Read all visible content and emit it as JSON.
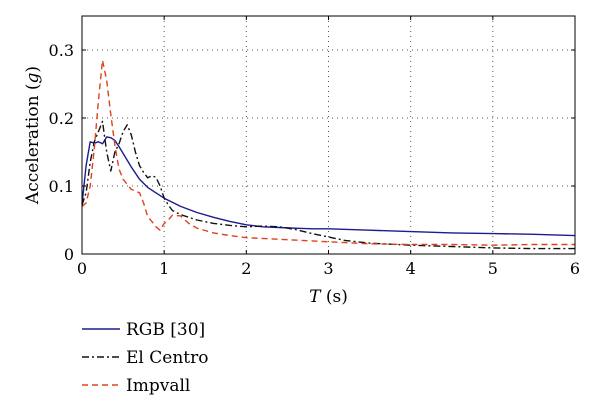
{
  "chart_data": {
    "type": "line",
    "title": "",
    "xlabel": "T (s)",
    "xlabel_italic": "T",
    "xlabel_rest": " (s)",
    "ylabel": "Acceleration (g)",
    "ylabel_prefix": "Acceleration (",
    "ylabel_italic": "g",
    "ylabel_suffix": ")",
    "xlim": [
      0,
      6
    ],
    "ylim": [
      0,
      0.35
    ],
    "xticks": [
      0,
      1,
      2,
      3,
      4,
      5,
      6
    ],
    "xtick_labels": [
      "0",
      "1",
      "2",
      "3",
      "4",
      "5",
      "6"
    ],
    "yticks": [
      0,
      0.1,
      0.2,
      0.3
    ],
    "ytick_labels": [
      "0",
      "0.1",
      "0.2",
      "0.3"
    ],
    "grid": true,
    "legend_position": "below",
    "series": [
      {
        "name": "RGB [30]",
        "color": "#1c1c8c",
        "dash": "solid",
        "points": [
          [
            0,
            0.073
          ],
          [
            0.05,
            0.13
          ],
          [
            0.1,
            0.165
          ],
          [
            0.15,
            0.163
          ],
          [
            0.2,
            0.165
          ],
          [
            0.25,
            0.162
          ],
          [
            0.3,
            0.172
          ],
          [
            0.35,
            0.171
          ],
          [
            0.4,
            0.167
          ],
          [
            0.45,
            0.158
          ],
          [
            0.5,
            0.148
          ],
          [
            0.6,
            0.128
          ],
          [
            0.7,
            0.11
          ],
          [
            0.8,
            0.098
          ],
          [
            0.9,
            0.09
          ],
          [
            1.0,
            0.082
          ],
          [
            1.2,
            0.07
          ],
          [
            1.4,
            0.061
          ],
          [
            1.6,
            0.054
          ],
          [
            1.8,
            0.048
          ],
          [
            2.0,
            0.043
          ],
          [
            2.2,
            0.04
          ],
          [
            2.4,
            0.039
          ],
          [
            2.6,
            0.038
          ],
          [
            2.8,
            0.037
          ],
          [
            3.0,
            0.037
          ],
          [
            3.5,
            0.035
          ],
          [
            4.0,
            0.033
          ],
          [
            4.5,
            0.031
          ],
          [
            5.0,
            0.03
          ],
          [
            5.5,
            0.029
          ],
          [
            6.0,
            0.027
          ]
        ]
      },
      {
        "name": "El Centro",
        "color": "#111111",
        "dash": "dashdot",
        "points": [
          [
            0,
            0.072
          ],
          [
            0.05,
            0.09
          ],
          [
            0.1,
            0.135
          ],
          [
            0.15,
            0.165
          ],
          [
            0.2,
            0.18
          ],
          [
            0.25,
            0.195
          ],
          [
            0.3,
            0.15
          ],
          [
            0.35,
            0.122
          ],
          [
            0.4,
            0.15
          ],
          [
            0.45,
            0.162
          ],
          [
            0.5,
            0.18
          ],
          [
            0.55,
            0.19
          ],
          [
            0.6,
            0.175
          ],
          [
            0.65,
            0.15
          ],
          [
            0.7,
            0.13
          ],
          [
            0.75,
            0.12
          ],
          [
            0.8,
            0.112
          ],
          [
            0.85,
            0.115
          ],
          [
            0.9,
            0.113
          ],
          [
            0.95,
            0.1
          ],
          [
            1.0,
            0.082
          ],
          [
            1.05,
            0.072
          ],
          [
            1.1,
            0.064
          ],
          [
            1.2,
            0.058
          ],
          [
            1.4,
            0.05
          ],
          [
            1.6,
            0.045
          ],
          [
            1.8,
            0.042
          ],
          [
            2.0,
            0.04
          ],
          [
            2.2,
            0.041
          ],
          [
            2.4,
            0.04
          ],
          [
            2.6,
            0.036
          ],
          [
            2.8,
            0.03
          ],
          [
            3.0,
            0.025
          ],
          [
            3.2,
            0.02
          ],
          [
            3.5,
            0.016
          ],
          [
            4.0,
            0.013
          ],
          [
            4.5,
            0.011
          ],
          [
            5.0,
            0.009
          ],
          [
            5.5,
            0.008
          ],
          [
            6.0,
            0.008
          ]
        ]
      },
      {
        "name": "Impvall",
        "color": "#e0401c",
        "dash": "dashed",
        "points": [
          [
            0,
            0.07
          ],
          [
            0.05,
            0.075
          ],
          [
            0.1,
            0.1
          ],
          [
            0.15,
            0.155
          ],
          [
            0.2,
            0.225
          ],
          [
            0.25,
            0.285
          ],
          [
            0.3,
            0.255
          ],
          [
            0.35,
            0.205
          ],
          [
            0.4,
            0.16
          ],
          [
            0.45,
            0.125
          ],
          [
            0.5,
            0.11
          ],
          [
            0.6,
            0.095
          ],
          [
            0.7,
            0.09
          ],
          [
            0.75,
            0.075
          ],
          [
            0.8,
            0.055
          ],
          [
            0.85,
            0.048
          ],
          [
            0.9,
            0.04
          ],
          [
            0.95,
            0.035
          ],
          [
            1.0,
            0.045
          ],
          [
            1.05,
            0.05
          ],
          [
            1.1,
            0.057
          ],
          [
            1.2,
            0.056
          ],
          [
            1.3,
            0.045
          ],
          [
            1.4,
            0.038
          ],
          [
            1.6,
            0.031
          ],
          [
            1.8,
            0.027
          ],
          [
            2.0,
            0.024
          ],
          [
            2.5,
            0.021
          ],
          [
            3.0,
            0.018
          ],
          [
            3.5,
            0.015
          ],
          [
            4.0,
            0.014
          ],
          [
            4.5,
            0.014
          ],
          [
            5.0,
            0.013
          ],
          [
            5.5,
            0.014
          ],
          [
            6.0,
            0.014
          ]
        ]
      }
    ]
  }
}
